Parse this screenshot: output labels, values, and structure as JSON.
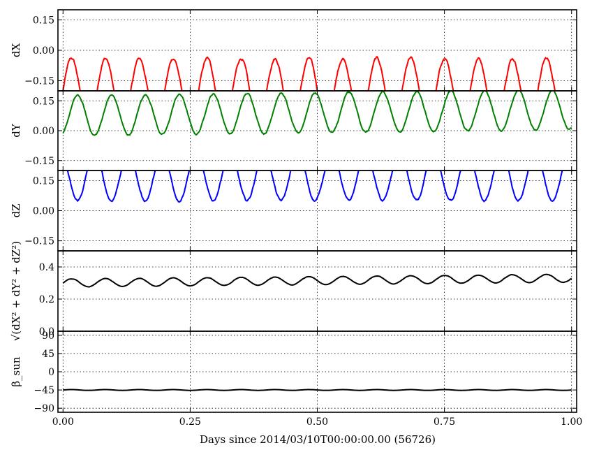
{
  "figure": {
    "xlabel": "Days since 2014/03/10T00:00:00.00 (56726)"
  },
  "colors": {
    "dX": "#ff0000",
    "dY": "#008000",
    "dZ": "#0000ff",
    "norm": "#000000",
    "beta": "#000000"
  },
  "chart_data": {
    "type": "line",
    "xlim": [
      -0.01,
      1.01
    ],
    "xticks": [
      0.0,
      0.25,
      0.5,
      0.75,
      1.0
    ],
    "xtick_labels": [
      "0.00",
      "0.25",
      "0.50",
      "0.75",
      "1.00"
    ],
    "grid": true,
    "grid_style": "dotted",
    "panels": [
      {
        "id": "dX",
        "ylabel": "dX",
        "ylim": [
          -0.2,
          0.2
        ],
        "yticks": [
          -0.15,
          0.0,
          0.15
        ],
        "ytick_labels": [
          "−0.15",
          "0.00",
          "0.15"
        ],
        "series": [
          {
            "color_key": "dX",
            "model": "sinusoid",
            "mean": -0.2,
            "amplitude": 0.16,
            "period_days": 0.0667,
            "phase_days": 0.0
          }
        ]
      },
      {
        "id": "dY",
        "ylabel": "dY",
        "ylim": [
          -0.2,
          0.2
        ],
        "yticks": [
          -0.15,
          0.0,
          0.15
        ],
        "ytick_labels": [
          "−0.15",
          "0.00",
          "0.15"
        ],
        "series": [
          {
            "color_key": "dY",
            "model": "sinusoid",
            "mean": 0.075,
            "amplitude": 0.1,
            "period_days": 0.0667,
            "phase_days": 0.012,
            "drift_per_day": 0.03
          }
        ]
      },
      {
        "id": "dZ",
        "ylabel": "dZ",
        "ylim": [
          -0.2,
          0.2
        ],
        "yticks": [
          -0.15,
          0.0,
          0.15
        ],
        "ytick_labels": [
          "−0.15",
          "0.00",
          "0.15"
        ],
        "series": [
          {
            "color_key": "dZ",
            "model": "sinusoid",
            "mean": 0.17,
            "amplitude": 0.12,
            "period_days": 0.0667,
            "phase_days": 0.045
          }
        ]
      },
      {
        "id": "norm",
        "ylabel": "√(dX² + dY² + dZ²)",
        "ylim": [
          0.0,
          0.5
        ],
        "yticks": [
          0.0,
          0.2,
          0.4
        ],
        "ytick_labels": [
          "0.0",
          "0.2",
          "0.4"
        ],
        "series": [
          {
            "color_key": "norm",
            "model": "sinusoid",
            "mean": 0.3,
            "amplitude": 0.025,
            "period_days": 0.0667,
            "phase_days": 0.0,
            "drift_per_day": 0.03
          }
        ]
      },
      {
        "id": "beta",
        "ylabel": "β_sun",
        "ylim": [
          -100,
          100
        ],
        "yticks": [
          -90,
          -45,
          0,
          45,
          90
        ],
        "ytick_labels": [
          "−90",
          "−45",
          "0",
          "45",
          "90"
        ],
        "series": [
          {
            "color_key": "beta",
            "model": "sinusoid",
            "mean": -45,
            "amplitude": 1.0,
            "period_days": 0.0667,
            "phase_days": 0.0
          }
        ]
      }
    ]
  }
}
